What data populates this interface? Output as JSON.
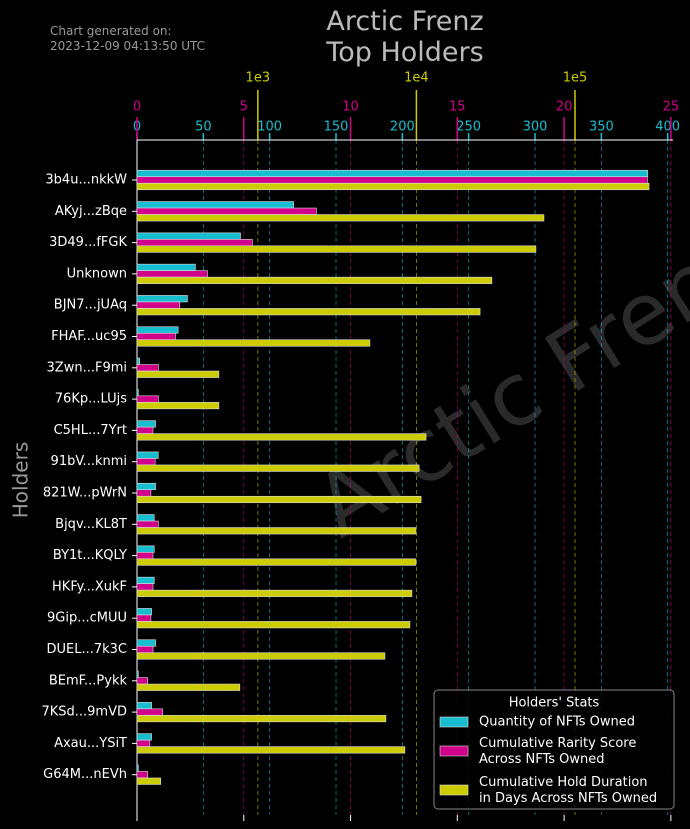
{
  "chart_data": {
    "type": "bar",
    "orientation": "horizontal",
    "title": "Arctic Frenz\nTop Holders",
    "annotation": "Chart generated on:\n2023-12-09 04:13:50 UTC",
    "watermark": "Arctic Frenz",
    "y_label": "Holders",
    "legend_title": "Holders' Stats",
    "legend_position": "lower right",
    "categories": [
      "3b4u...nkkW",
      "AKyj...zBqe",
      "3D49...fFGK",
      "Unknown",
      "BJN7...jUAq",
      "FHAF...uc95",
      "3Zwn...F9mi",
      "76Kp...LUjs",
      "C5HL...7Yrt",
      "91bV...knmi",
      "821W...pWrN",
      "Bjqv...KL8T",
      "BY1t...KQLY",
      "HKFy...XukF",
      "9Gip...cMUU",
      "DUEL...7k3C",
      "BEmF...Pykk",
      "7KSd...9mVD",
      "Axau...YSiT",
      "G64M...nEVh"
    ],
    "xlim": [
      0,
      404
    ],
    "xticks": [
      0,
      50,
      100,
      150,
      200,
      250,
      300,
      350,
      400
    ],
    "x2lim": [
      0,
      25.1
    ],
    "x2ticks": [
      0,
      5,
      10,
      15,
      20,
      25
    ],
    "x3lim": [
      173,
      415000
    ],
    "x3scale": "log",
    "x3ticks": [
      {
        "value": 1000,
        "label": "1e3"
      },
      {
        "value": 10000,
        "label": "1e4"
      },
      {
        "value": 100000,
        "label": "1e5"
      }
    ],
    "grid": true,
    "series": [
      {
        "name": "Quantity of NFTs Owned",
        "color": "#17becf",
        "axis": "x",
        "values": [
          385,
          118,
          78,
          44,
          38,
          31,
          2,
          1,
          14,
          16,
          14,
          13,
          13,
          13,
          11,
          14,
          1,
          11,
          11,
          1
        ]
      },
      {
        "name": "Cumulative Rarity Score\nAcross NFTs Owned",
        "color": "#d1008a",
        "axis": "x2",
        "values": [
          23.9,
          8.4,
          5.4,
          3.3,
          2.0,
          1.8,
          1.0,
          1.0,
          0.75,
          0.85,
          0.65,
          1.0,
          0.75,
          0.75,
          0.65,
          0.75,
          0.5,
          1.2,
          0.6,
          0.5
        ]
      },
      {
        "name": "Cumulative Hold Duration\nin Days Across NFTs Owned",
        "color": "#cccc00",
        "axis": "x3",
        "values": [
          293000,
          63700,
          56700,
          29900,
          25200,
          5090,
          568,
          568,
          11500,
          10400,
          10700,
          9930,
          9930,
          9370,
          9100,
          6330,
          770,
          6420,
          8460,
          244
        ]
      }
    ]
  }
}
